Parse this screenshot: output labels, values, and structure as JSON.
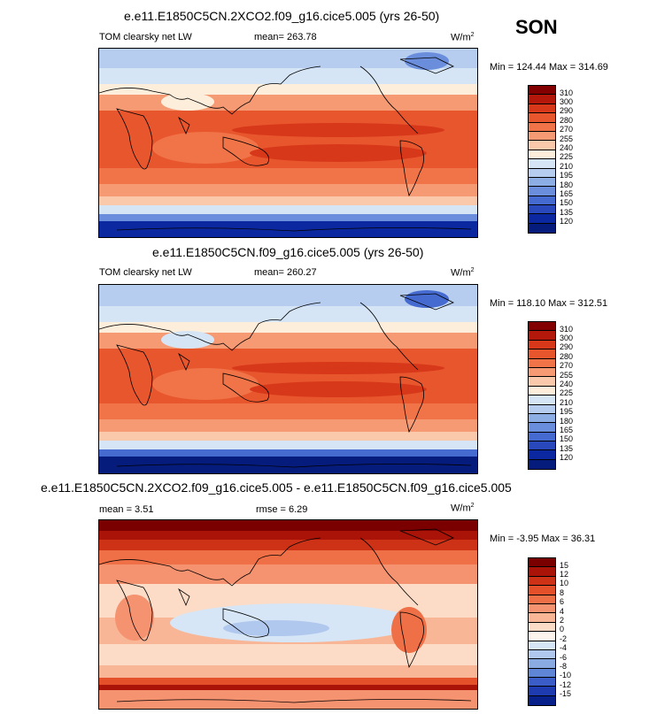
{
  "season": "SON",
  "panels": [
    {
      "title": "e.e11.E1850C5CN.2XCO2.f09_g16.cice5.005 (yrs 26-50)",
      "left_label": "TOM clearsky net LW",
      "mean_label": "mean= 263.78",
      "units_base": "W/m",
      "units_exp": "2",
      "minmax": "Min = 124.44 Max = 314.69",
      "levels": [
        "310",
        "300",
        "290",
        "280",
        "270",
        "255",
        "240",
        "225",
        "210",
        "195",
        "180",
        "165",
        "150",
        "135",
        "120"
      ]
    },
    {
      "title": "e.e11.E1850C5CN.f09_g16.cice5.005 (yrs 26-50)",
      "left_label": "TOM clearsky net LW",
      "mean_label": "mean= 260.27",
      "units_base": "W/m",
      "units_exp": "2",
      "minmax": "Min = 118.10 Max = 312.51",
      "levels": [
        "310",
        "300",
        "290",
        "280",
        "270",
        "255",
        "240",
        "225",
        "210",
        "195",
        "180",
        "165",
        "150",
        "135",
        "120"
      ]
    },
    {
      "title": "e.e11.E1850C5CN.2XCO2.f09_g16.cice5.005 - e.e11.E1850C5CN.f09_g16.cice5.005",
      "left_label": "mean =  3.51",
      "mean_label": "rmse =  6.29",
      "units_base": "W/m",
      "units_exp": "2",
      "minmax": "Min = -3.95 Max = 36.31",
      "levels": [
        "15",
        "12",
        "10",
        "8",
        "6",
        "4",
        "2",
        "0",
        "-2",
        "-4",
        "-6",
        "-8",
        "-10",
        "-12",
        "-15"
      ]
    }
  ],
  "colors": {
    "abs_scale": [
      "#820000",
      "#b3180a",
      "#d8381a",
      "#e8562e",
      "#f07448",
      "#f69a74",
      "#fac8aa",
      "#fdeedc",
      "#d5e5f5",
      "#b6cdef",
      "#8caee5",
      "#6a8edb",
      "#466bd0",
      "#2848bc",
      "#0c28a0",
      "#061c7c"
    ],
    "diff_scale": [
      "#7a0000",
      "#aa1308",
      "#cd3217",
      "#e4502a",
      "#ef7046",
      "#f59270",
      "#f9b696",
      "#fcdcc6",
      "#fdf4ee",
      "#d7e6f6",
      "#b0c8ee",
      "#8aaae2",
      "#5f85d6",
      "#3a5dc8",
      "#1e3cb0",
      "#08208a"
    ]
  }
}
